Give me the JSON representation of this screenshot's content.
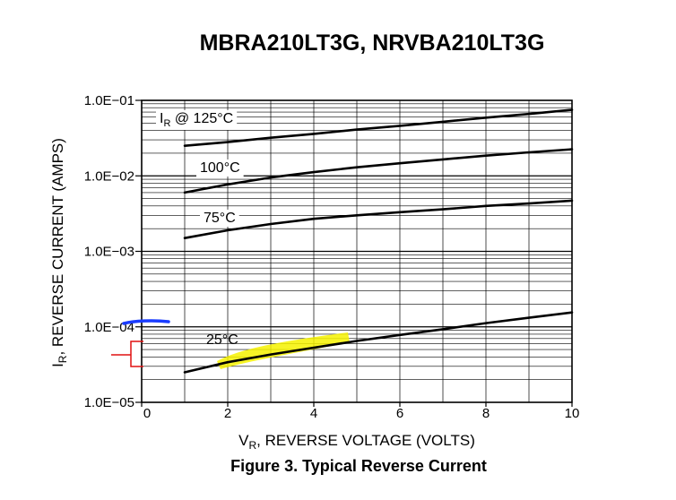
{
  "chart_data": {
    "type": "line",
    "title": "MBRA210LT3G, NRVBA210LT3G",
    "caption": "Figure 3. Typical Reverse Current",
    "xlabel_main": "V",
    "xlabel_sub": "R",
    "xlabel_rest": ", REVERSE VOLTAGE (VOLTS)",
    "ylabel_main": "I",
    "ylabel_sub": "R",
    "ylabel_rest": ", REVERSE CURRENT (AMPS)",
    "xlim": [
      0,
      10
    ],
    "ylim": [
      1e-05,
      0.1
    ],
    "yscale": "log",
    "x_ticks": [
      "0",
      "2",
      "4",
      "6",
      "8",
      "10"
    ],
    "y_ticks": [
      "1.0E−05",
      "1.0E−04",
      "1.0E−03",
      "1.0E−02",
      "1.0E−01"
    ],
    "grid": true,
    "series": [
      {
        "label_main": "I",
        "label_sub": "R",
        "label_rest": " @ 125°C",
        "x": [
          1,
          2,
          3,
          4,
          5,
          6,
          7,
          8,
          9,
          10
        ],
        "y": [
          0.025,
          0.028,
          0.032,
          0.036,
          0.041,
          0.046,
          0.052,
          0.059,
          0.066,
          0.075
        ]
      },
      {
        "label_main": "",
        "label_sub": "",
        "label_rest": "100°C",
        "x": [
          1,
          2,
          3,
          4,
          5,
          6,
          7,
          8,
          9,
          10
        ],
        "y": [
          0.006,
          0.0077,
          0.0095,
          0.0112,
          0.013,
          0.0147,
          0.0165,
          0.0185,
          0.0205,
          0.0225
        ]
      },
      {
        "label_main": "",
        "label_sub": "",
        "label_rest": "75°C",
        "x": [
          1,
          2,
          3,
          4,
          5,
          6,
          7,
          8,
          9,
          10
        ],
        "y": [
          0.0015,
          0.0019,
          0.0023,
          0.0027,
          0.003,
          0.0033,
          0.0036,
          0.004,
          0.0043,
          0.0047
        ]
      },
      {
        "label_main": "",
        "label_sub": "",
        "label_rest": "25°C",
        "x": [
          1,
          2,
          3,
          4,
          5,
          6,
          7,
          8,
          9,
          10
        ],
        "y": [
          2.5e-05,
          3.4e-05,
          4.3e-05,
          5.3e-05,
          6.5e-05,
          7.8e-05,
          9.3e-05,
          0.000112,
          0.000132,
          0.000155
        ]
      }
    ]
  }
}
